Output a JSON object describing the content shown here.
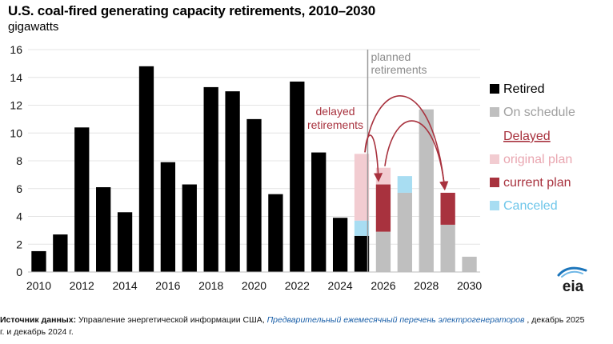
{
  "title": "U.S. coal-fired generating capacity retirements, 2010–2030",
  "subtitle": "gigawatts",
  "chart_data": {
    "type": "bar",
    "stacked": true,
    "ylim": [
      0,
      16
    ],
    "yticks": [
      0,
      2,
      4,
      6,
      8,
      10,
      12,
      14,
      16
    ],
    "categories": [
      2010,
      2011,
      2012,
      2013,
      2014,
      2015,
      2016,
      2017,
      2018,
      2019,
      2020,
      2021,
      2022,
      2023,
      2024,
      2025,
      2026,
      2027,
      2028,
      2029,
      2030
    ],
    "xtick_labels": [
      "2010",
      "2012",
      "2014",
      "2016",
      "2018",
      "2020",
      "2022",
      "2024",
      "2026",
      "2028",
      "2030"
    ],
    "series": [
      {
        "name": "Retired",
        "color": "#000000",
        "values": [
          1.5,
          2.7,
          10.4,
          6.1,
          4.3,
          14.8,
          7.9,
          6.3,
          13.3,
          13.0,
          11.0,
          5.6,
          13.7,
          8.6,
          3.9,
          2.6,
          0,
          0,
          0,
          0,
          0
        ]
      },
      {
        "name": "On schedule",
        "color": "#bfbfbf",
        "values": [
          0,
          0,
          0,
          0,
          0,
          0,
          0,
          0,
          0,
          0,
          0,
          0,
          0,
          0,
          0,
          0,
          2.9,
          5.7,
          11.7,
          3.4,
          1.1
        ]
      },
      {
        "name": "Delayed – current plan",
        "color": "#a8323e",
        "values": [
          0,
          0,
          0,
          0,
          0,
          0,
          0,
          0,
          0,
          0,
          0,
          0,
          0,
          0,
          0,
          0,
          3.4,
          0,
          0,
          2.3,
          0
        ]
      },
      {
        "name": "Canceled",
        "color": "#a8ddf2",
        "values": [
          0,
          0,
          0,
          0,
          0,
          0,
          0,
          0,
          0,
          0,
          0,
          0,
          0,
          0,
          0,
          1.1,
          0,
          1.2,
          0,
          0,
          0
        ]
      },
      {
        "name": "Delayed – original plan",
        "color": "#f2ccd1",
        "values": [
          0,
          0,
          0,
          0,
          0,
          0,
          0,
          0,
          0,
          0,
          0,
          0,
          0,
          0,
          0,
          4.8,
          1.2,
          0,
          0,
          0,
          0
        ]
      }
    ],
    "planned_divider_after": 2025,
    "annotations": {
      "planned": [
        "planned",
        "retirements"
      ],
      "delayed": [
        "delayed",
        "retirements"
      ]
    },
    "arrows": [
      {
        "from": 2025,
        "to": 2026
      },
      {
        "from": 2025,
        "to": 2029
      },
      {
        "from": 2026,
        "to": 2029
      }
    ],
    "legend": {
      "position": "right",
      "items": [
        {
          "label": "Retired",
          "color": "#000000"
        },
        {
          "label": "On schedule",
          "color": "#bfbfbf"
        },
        {
          "label": "Delayed",
          "heading": true
        },
        {
          "label": "original plan",
          "color": "#f2ccd1"
        },
        {
          "label": "current plan",
          "color": "#a8323e"
        },
        {
          "label": "Canceled",
          "color": "#a8ddf2"
        }
      ]
    },
    "colors": {
      "retired": "#000000",
      "on_schedule": "#bfbfbf",
      "original_plan": "#f2ccd1",
      "current_plan": "#a8323e",
      "canceled": "#a8ddf2",
      "annotation": "#a8323e",
      "planned_text": "#8c8c8c",
      "legend_grey": "#a0a0a0",
      "legend_pink": "#e9a6b0",
      "legend_blue": "#6ec6ea"
    }
  },
  "logo": {
    "text": "eia"
  },
  "source": {
    "label": "Источник данных:",
    "text1": " Управление энергетической информации США, ",
    "link": "Предварительный ежемесячный перечень электрогенераторов",
    "text2": " , декабрь 2025",
    "line2": "г. и декабрь 2024 г."
  }
}
